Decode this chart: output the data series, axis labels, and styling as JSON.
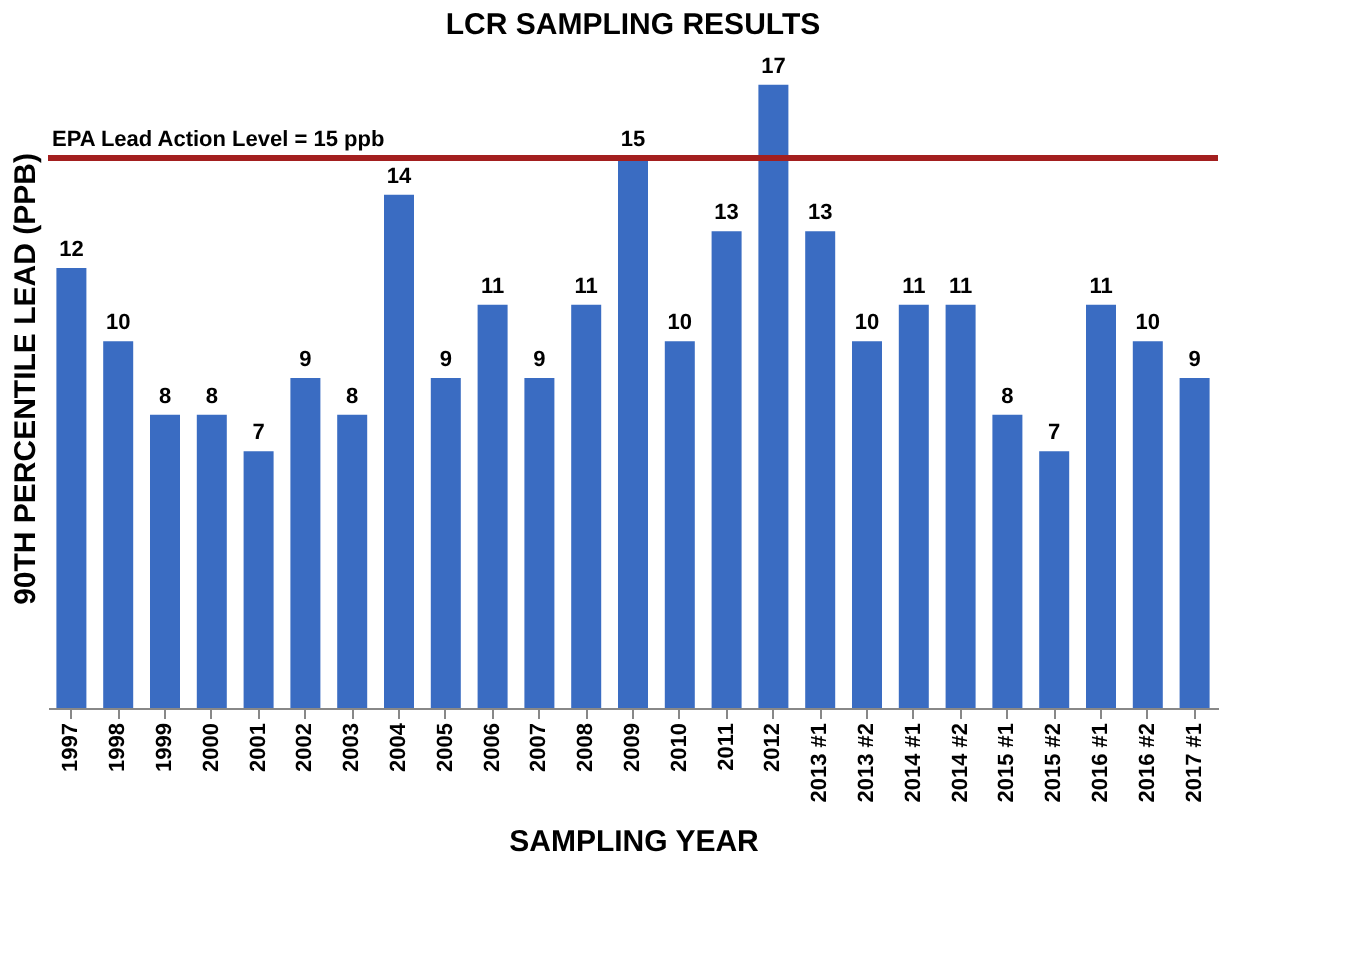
{
  "chart_data": {
    "type": "bar",
    "title": "LCR SAMPLING RESULTS",
    "xlabel": "SAMPLING YEAR",
    "ylabel": "90TH PERCENTILE LEAD (PPB)",
    "categories": [
      "1997",
      "1998",
      "1999",
      "2000",
      "2001",
      "2002",
      "2003",
      "2004",
      "2005",
      "2006",
      "2007",
      "2008",
      "2009",
      "2010",
      "2011",
      "2012",
      "2013 #1",
      "2013 #2",
      "2014 #1",
      "2014 #2",
      "2015 #1",
      "2015 #2",
      "2016 #1",
      "2016 #2",
      "2017 #1"
    ],
    "values": [
      12,
      10,
      8,
      8,
      7,
      9,
      8,
      14,
      9,
      11,
      9,
      11,
      15,
      10,
      13,
      17,
      13,
      10,
      11,
      11,
      8,
      7,
      11,
      10,
      9
    ],
    "color": "#3a6cc2",
    "data_labels": true,
    "tick_labels": "x",
    "grid": false,
    "ref_lines": [
      {
        "axis": "y",
        "value": 15,
        "label": "EPA Lead Action Level = 15 ppb",
        "color": "#a31f1f"
      }
    ]
  }
}
